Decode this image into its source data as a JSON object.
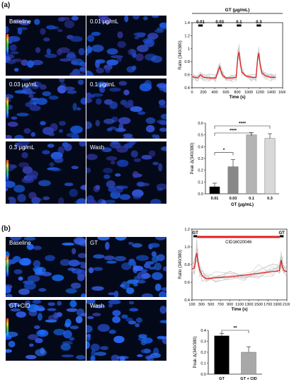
{
  "panel_a": {
    "letter": "(a)",
    "images": [
      {
        "label": "Baseline"
      },
      {
        "label": "0.01 μg/mL"
      },
      {
        "label": "0.03 μg/mL"
      },
      {
        "label": "0.1 μg/mL"
      },
      {
        "label": "0.3 μg/mL"
      },
      {
        "label": "Wash"
      }
    ]
  },
  "panel_b": {
    "letter": "(b)",
    "images": [
      {
        "label": "Baseline"
      },
      {
        "label": "GT"
      },
      {
        "label": "GT+CID"
      },
      {
        "label": "Wash"
      }
    ]
  },
  "chart_data": [
    {
      "type": "line",
      "title": "GT (μg/mL)",
      "xlabel": "Time (s)",
      "ylabel": "Ratio (340/380)",
      "xlim": [
        0,
        1600
      ],
      "ylim": [
        0.4,
        1.4
      ],
      "xticks": [
        0,
        200,
        400,
        600,
        800,
        1000,
        1200,
        1400,
        1600
      ],
      "yticks": [
        0.4,
        0.6,
        0.8,
        1.0,
        1.2,
        1.4
      ],
      "ytick_labels": [
        "0.4",
        "0.6",
        "0.8",
        "1",
        "1.2",
        "1.4"
      ],
      "annotations": [
        {
          "text": "0.01",
          "x_start": 110,
          "x_end": 190
        },
        {
          "text": "0.03",
          "x_start": 450,
          "x_end": 530
        },
        {
          "text": "0.1",
          "x_start": 790,
          "x_end": 870
        },
        {
          "text": "0.3",
          "x_start": 1140,
          "x_end": 1220
        }
      ],
      "series": [
        {
          "color": "#e02020",
          "x": [
            0,
            100,
            150,
            200,
            300,
            420,
            470,
            490,
            510,
            540,
            600,
            700,
            780,
            810,
            830,
            850,
            880,
            950,
            1050,
            1130,
            1160,
            1180,
            1200,
            1230,
            1300,
            1400,
            1480
          ],
          "y": [
            0.57,
            0.55,
            0.6,
            0.56,
            0.55,
            0.55,
            0.68,
            0.72,
            0.66,
            0.59,
            0.55,
            0.55,
            0.56,
            0.88,
            0.95,
            0.8,
            0.64,
            0.58,
            0.56,
            0.56,
            0.86,
            0.93,
            0.78,
            0.63,
            0.58,
            0.56,
            0.56
          ]
        }
      ]
    },
    {
      "type": "bar",
      "xlabel": "GT (μg/mL)",
      "ylabel": "Peak Δ(340/380)",
      "categories": [
        "0.01",
        "0.03",
        "0.1",
        "0.3"
      ],
      "values": [
        0.06,
        0.23,
        0.5,
        0.47
      ],
      "errors": [
        0.03,
        0.06,
        0.02,
        0.04
      ],
      "colors": [
        "#000000",
        "#888888",
        "#b4b4b4",
        "#d8d8d8"
      ],
      "ylim": [
        0,
        0.6
      ],
      "yticks": [
        0.0,
        0.1,
        0.2,
        0.3,
        0.4,
        0.5,
        0.6
      ],
      "ytick_labels": [
        "0.0",
        "0.1",
        "0.2",
        "0.3",
        "0.4",
        "0.5",
        "0.6"
      ],
      "significance": [
        {
          "from": 0,
          "to": 1,
          "label": "*"
        },
        {
          "from": 0,
          "to": 2,
          "label": "****"
        },
        {
          "from": 0,
          "to": 3,
          "label": "****"
        }
      ]
    },
    {
      "type": "line",
      "xlabel": "Time (s)",
      "ylabel": "Ratio (340/380)",
      "xlim": [
        100,
        2100
      ],
      "ylim": [
        0.4,
        1.2
      ],
      "xticks": [
        100,
        300,
        500,
        700,
        900,
        1100,
        1300,
        1500,
        1700,
        1900,
        2100
      ],
      "yticks": [
        0.4,
        0.6,
        0.8,
        1.0,
        1.2
      ],
      "ytick_labels": [
        "0.4",
        "0.6",
        "0.8",
        "1.0",
        "1.2"
      ],
      "annotations": [
        {
          "text": "GT",
          "x_start": 130,
          "x_end": 210
        },
        {
          "text": "CID16020046",
          "x_start": 210,
          "x_end": 1950
        },
        {
          "text": "GT",
          "x_start": 1950,
          "x_end": 2030
        }
      ],
      "series": [
        {
          "color": "#e02020",
          "x": [
            100,
            150,
            180,
            200,
            220,
            260,
            320,
            400,
            600,
            900,
            1200,
            1500,
            1800,
            1940,
            1960,
            1980,
            2000,
            2040,
            2100
          ],
          "y": [
            0.75,
            0.76,
            0.88,
            0.93,
            0.85,
            0.74,
            0.67,
            0.64,
            0.65,
            0.66,
            0.68,
            0.7,
            0.72,
            0.73,
            0.8,
            0.85,
            0.78,
            0.73,
            0.72
          ]
        }
      ]
    },
    {
      "type": "bar",
      "categories": [
        "GT",
        "GT + CID"
      ],
      "values": [
        0.35,
        0.2
      ],
      "errors": [
        0.02,
        0.05
      ],
      "colors": [
        "#000000",
        "#a8a8a8"
      ],
      "ylabel": "Peak Δ(340/380)",
      "xlabel": "",
      "ylim": [
        0,
        0.4
      ],
      "yticks": [
        0.0,
        0.1,
        0.2,
        0.3,
        0.4
      ],
      "ytick_labels": [
        "0.0",
        "0.1",
        "0.2",
        "0.3",
        "0.4"
      ],
      "significance": [
        {
          "from": 0,
          "to": 1,
          "label": "**"
        }
      ]
    }
  ]
}
